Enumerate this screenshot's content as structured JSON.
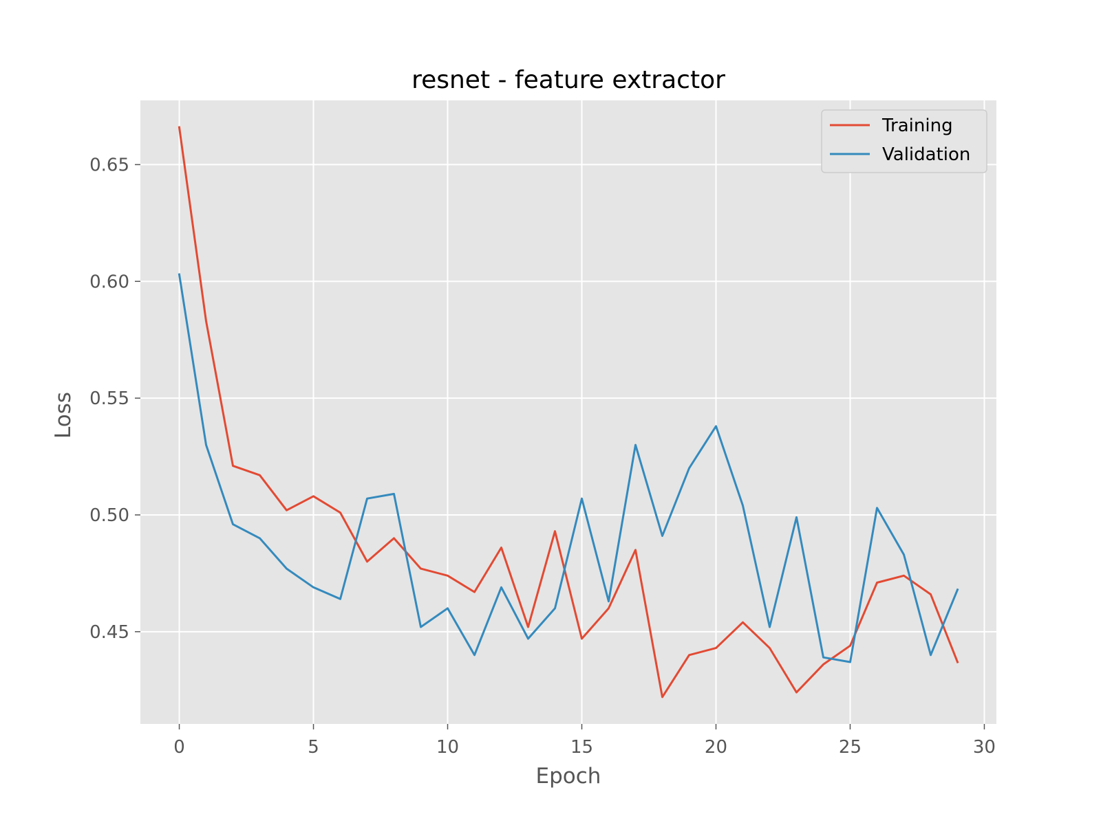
{
  "chart_data": {
    "type": "line",
    "title": "resnet - feature extractor",
    "xlabel": "Epoch",
    "ylabel": "Loss",
    "xlim": [
      -1.45,
      30.45
    ],
    "ylim": [
      0.4105,
      0.6775
    ],
    "xticks": [
      0,
      5,
      10,
      15,
      20,
      25,
      30
    ],
    "xtick_labels": [
      "0",
      "5",
      "10",
      "15",
      "20",
      "25",
      "30"
    ],
    "yticks": [
      0.45,
      0.5,
      0.55,
      0.6,
      0.65
    ],
    "ytick_labels": [
      "0.45",
      "0.50",
      "0.55",
      "0.60",
      "0.65"
    ],
    "grid": true,
    "legend_position": "top-right",
    "background": "#E5E5E5",
    "x": [
      0,
      1,
      2,
      3,
      4,
      5,
      6,
      7,
      8,
      9,
      10,
      11,
      12,
      13,
      14,
      15,
      16,
      17,
      18,
      19,
      20,
      21,
      22,
      23,
      24,
      25,
      26,
      27,
      28,
      29
    ],
    "series": [
      {
        "name": "Training",
        "color": "#E24A33",
        "values": [
          0.666,
          0.583,
          0.521,
          0.517,
          0.502,
          0.508,
          0.501,
          0.48,
          0.49,
          0.477,
          0.474,
          0.467,
          0.486,
          0.452,
          0.493,
          0.447,
          0.46,
          0.485,
          0.422,
          0.44,
          0.443,
          0.454,
          0.443,
          0.424,
          0.436,
          0.444,
          0.471,
          0.474,
          0.466,
          0.437
        ]
      },
      {
        "name": "Validation",
        "color": "#348ABD",
        "values": [
          0.603,
          0.53,
          0.496,
          0.49,
          0.477,
          0.469,
          0.464,
          0.507,
          0.509,
          0.452,
          0.46,
          0.44,
          0.469,
          0.447,
          0.46,
          0.507,
          0.463,
          0.53,
          0.491,
          0.52,
          0.538,
          0.504,
          0.452,
          0.499,
          0.439,
          0.437,
          0.503,
          0.483,
          0.44,
          0.468
        ]
      }
    ]
  }
}
